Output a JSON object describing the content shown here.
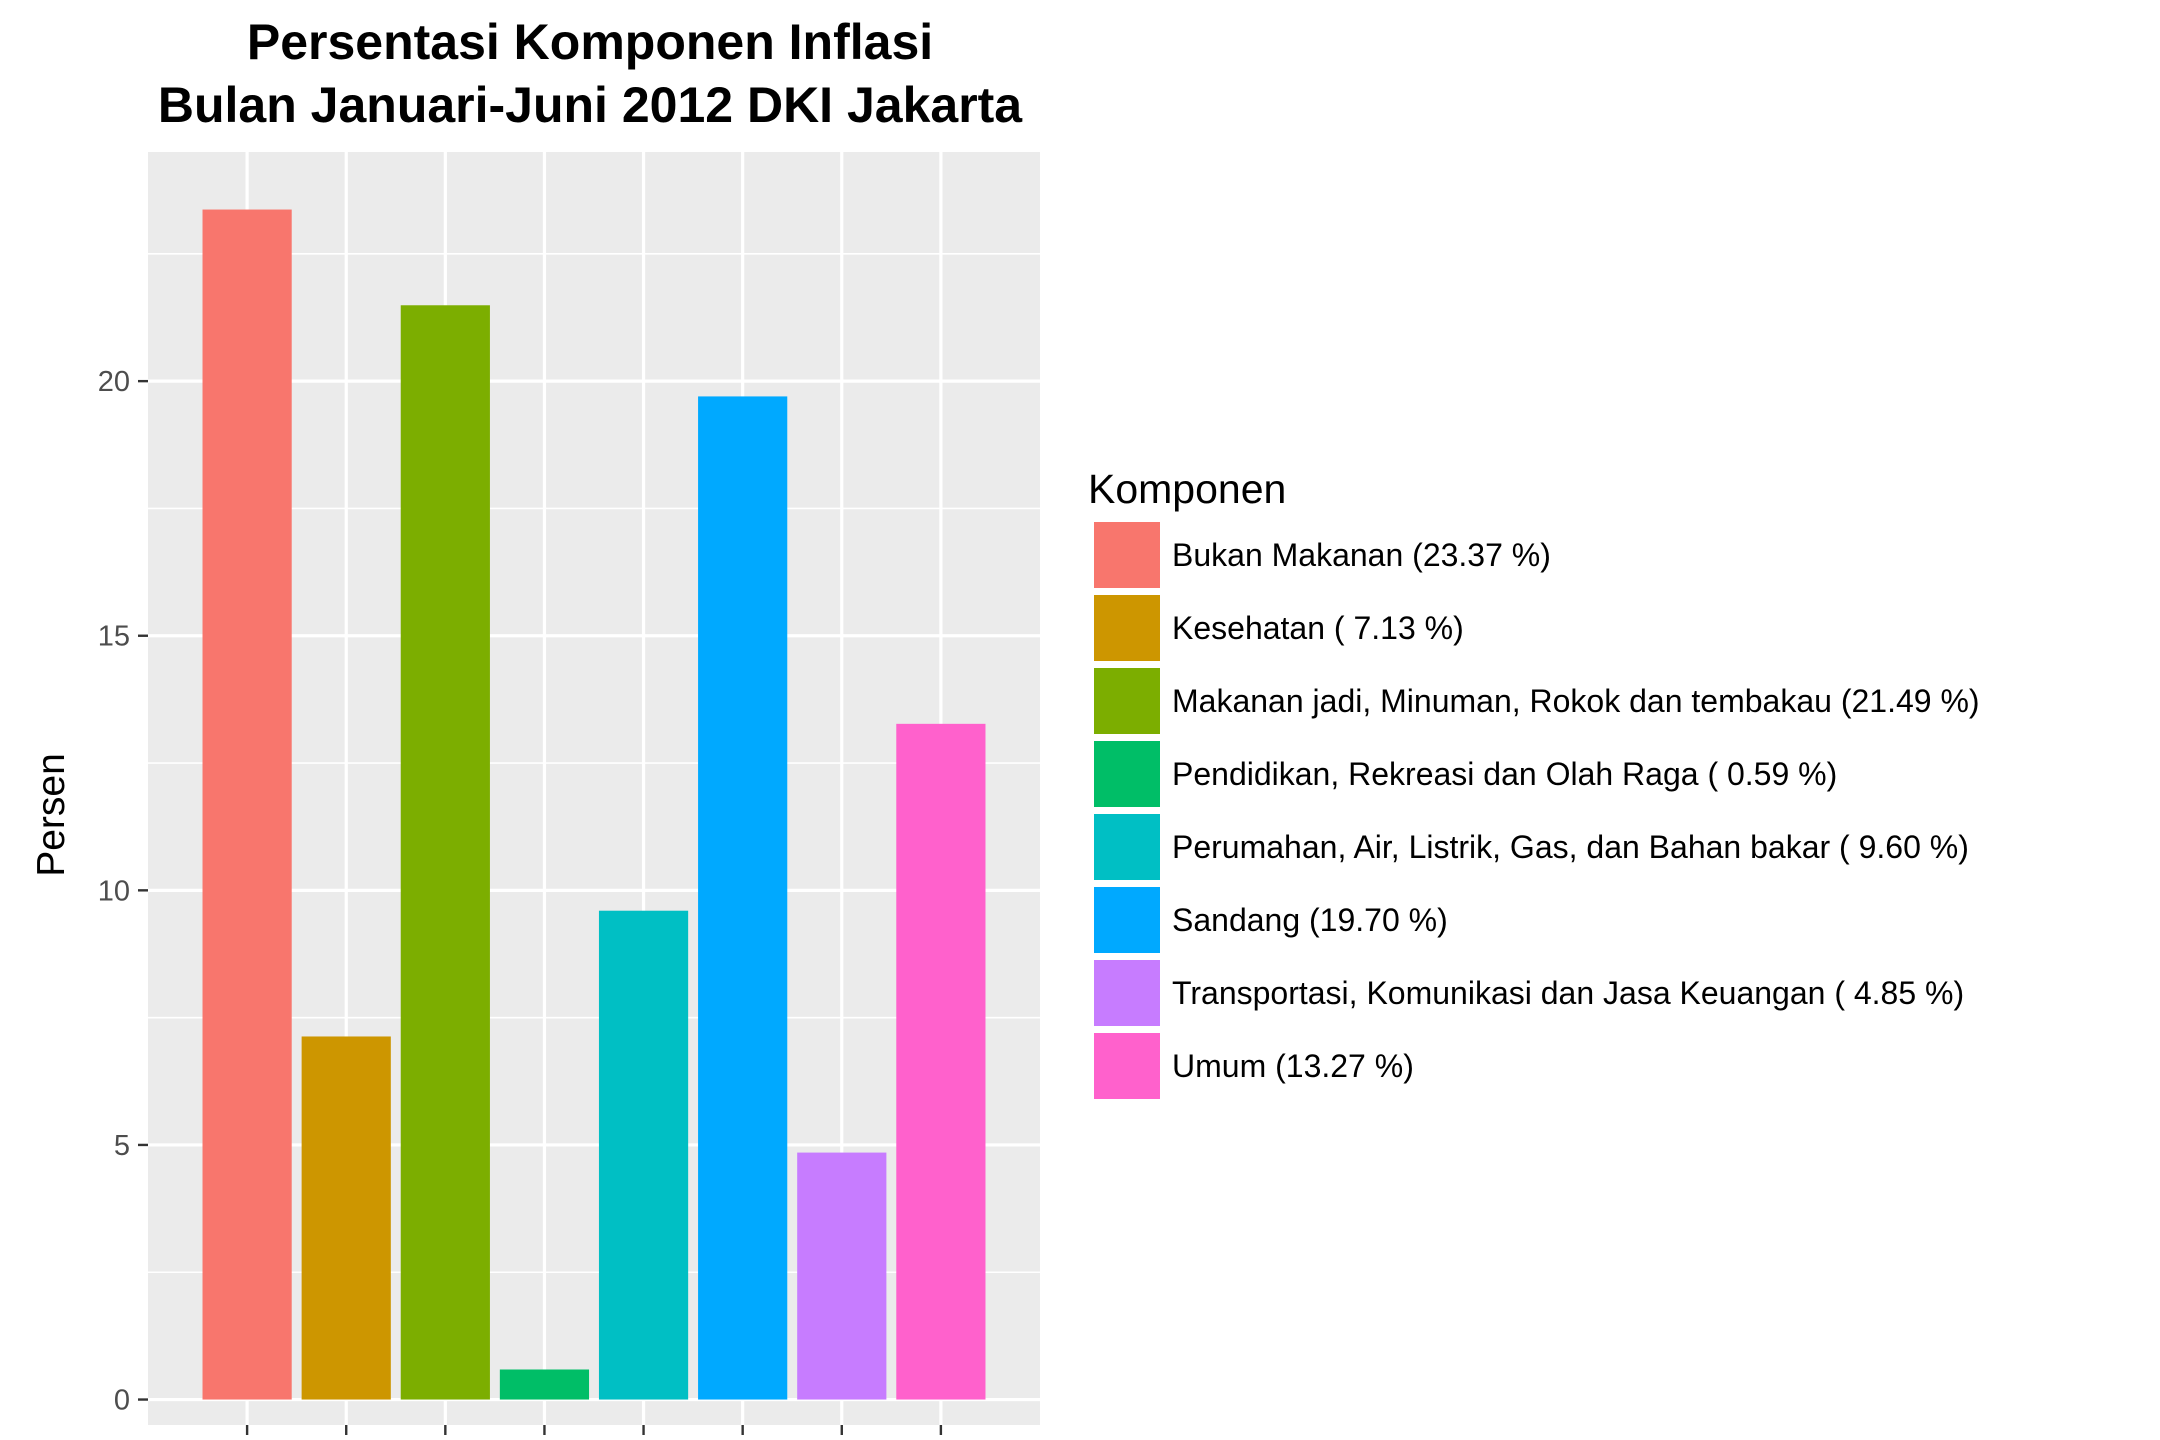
{
  "chart_data": {
    "type": "bar",
    "title": "Persentasi Komponen Inflasi",
    "subtitle": "Bulan Januari-Juni 2012 DKI Jakarta",
    "xlabel": "",
    "ylabel": "Persen",
    "ylim": [
      -0.5,
      24.5
    ],
    "yticks": [
      0,
      5,
      10,
      15,
      20
    ],
    "grid": true,
    "legend_position": "right",
    "legend_title": "Komponen",
    "categories": [
      "Bukan Makanan",
      "Kesehatan",
      "Makanan jadi, Minuman, Rokok dan tembakau",
      "Pendidikan, Rekreasi dan Olah Raga",
      "Perumahan, Air, Listrik, Gas, dan Bahan bakar",
      "Sandang",
      "Transportasi, Komunikasi dan Jasa Keuangan",
      "Umum"
    ],
    "values": [
      23.37,
      7.13,
      21.49,
      0.59,
      9.6,
      19.7,
      4.85,
      13.27
    ],
    "legend_labels": [
      "Bukan Makanan (23.37 %)",
      "Kesehatan ( 7.13 %)",
      "Makanan jadi, Minuman, Rokok dan tembakau (21.49 %)",
      "Pendidikan, Rekreasi dan Olah Raga ( 0.59 %)",
      "Perumahan, Air, Listrik, Gas, dan Bahan bakar ( 9.60 %)",
      "Sandang (19.70 %)",
      "Transportasi, Komunikasi dan Jasa Keuangan ( 4.85 %)",
      "Umum (13.27 %)"
    ],
    "colors": [
      "#F8766D",
      "#CD9600",
      "#7CAE00",
      "#00BE67",
      "#00BFC4",
      "#00A9FF",
      "#C77CFF",
      "#FF61CC"
    ],
    "panel_background": "#EBEBEB",
    "grid_color": "#FFFFFF"
  }
}
